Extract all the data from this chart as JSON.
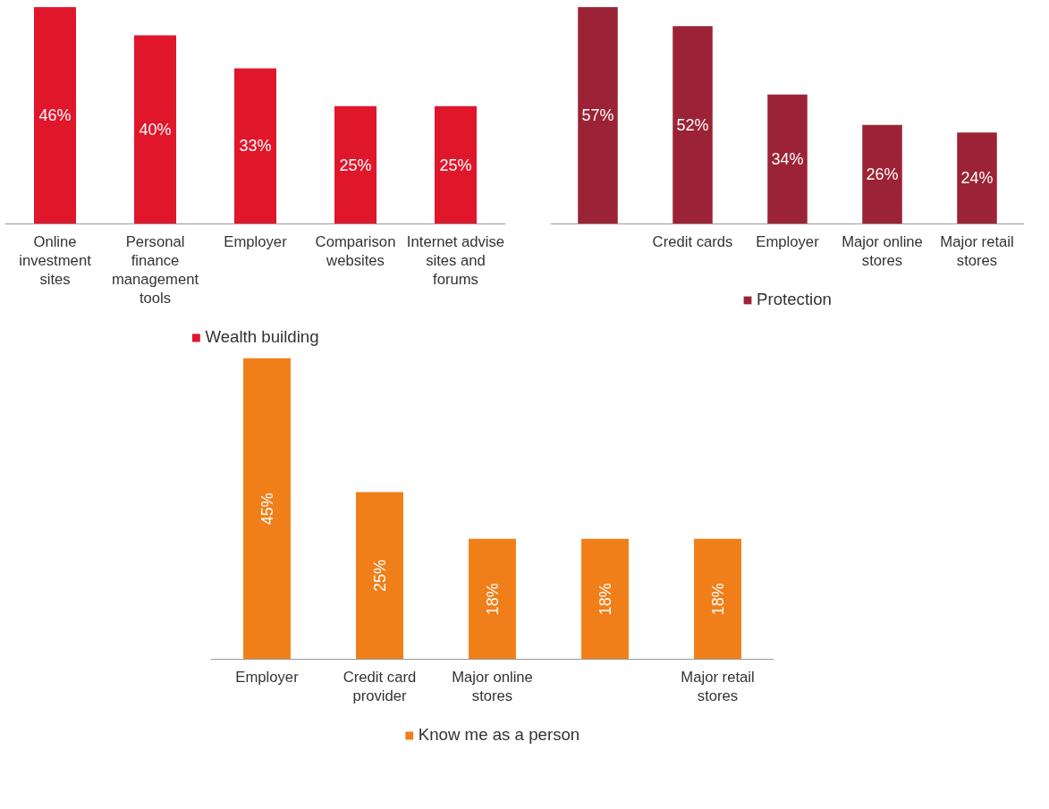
{
  "chart_data": [
    {
      "type": "bar",
      "categories": [
        "Online investment sites",
        "Personal finance management tools",
        "Employer",
        "Comparison websites",
        "Internet advise sites and forums"
      ],
      "series": [
        {
          "name": "Wealth building",
          "color": "#e0162b",
          "values": [
            46,
            40,
            33,
            25,
            25
          ],
          "value_labels": [
            "46%",
            "40%",
            "33%",
            "25%",
            "25%"
          ]
        }
      ],
      "legend": "bottom"
    },
    {
      "type": "bar",
      "categories": [
        null,
        "Credit cards",
        "Employer",
        "Major online stores",
        "Major retail stores"
      ],
      "series": [
        {
          "name": "Protection",
          "color": "#9b2335",
          "values": [
            57,
            52,
            34,
            26,
            24
          ],
          "value_labels": [
            "57%",
            "52%",
            "34%",
            "26%",
            "24%"
          ]
        }
      ],
      "legend": "bottom"
    },
    {
      "type": "bar",
      "categories": [
        "Employer",
        "Credit card provider",
        "Major online stores",
        null,
        "Major retail stores"
      ],
      "series": [
        {
          "name": "Know me as a person",
          "color": "#f07f1a",
          "values": [
            45,
            25,
            18,
            18,
            18
          ],
          "value_labels": [
            "45%",
            "25%",
            "18%",
            "18%",
            "18%"
          ]
        }
      ],
      "legend": "bottom"
    }
  ]
}
